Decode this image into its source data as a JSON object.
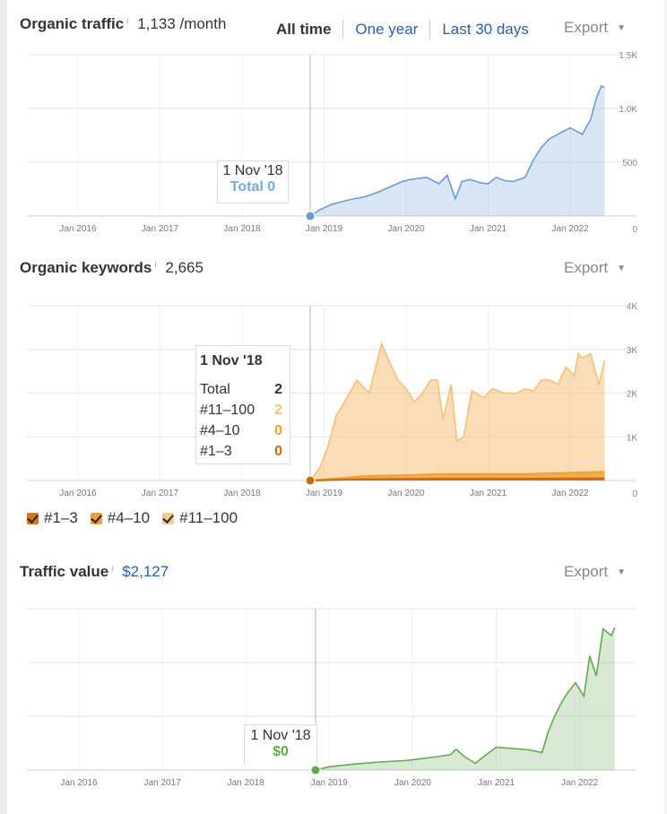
{
  "traffic": {
    "title": "Organic traffic",
    "info": "i",
    "value": "1,133 /month",
    "ranges": [
      "All time",
      "One year",
      "Last 30 days"
    ],
    "export_label": "Export",
    "tooltip": {
      "date": "1 Nov '18",
      "total_label": "Total",
      "total_value": "0"
    }
  },
  "keywords": {
    "title": "Organic keywords",
    "info": "i",
    "value": "2,665",
    "export_label": "Export",
    "tooltip": {
      "date": "1 Nov '18",
      "rows": [
        {
          "label": "Total",
          "value": "2",
          "color": "#333333"
        },
        {
          "label": "#11–100",
          "value": "2",
          "color": "#f5c07a"
        },
        {
          "label": "#4–10",
          "value": "0",
          "color": "#f0a035"
        },
        {
          "label": "#1–3",
          "value": "0",
          "color": "#c96a12"
        }
      ]
    },
    "legend": [
      {
        "label": "#1–3",
        "color": "#d2761f"
      },
      {
        "label": "#4–10",
        "color": "#f0a035"
      },
      {
        "label": "#11–100",
        "color": "#f7c98c"
      }
    ]
  },
  "value": {
    "title": "Traffic value",
    "info": "i",
    "value": "$2,127",
    "export_label": "Export",
    "tooltip": {
      "date": "1 Nov '18",
      "total_value": "$0"
    }
  },
  "chart_data": [
    {
      "type": "area",
      "title": "Organic traffic",
      "color": "#6b9bd4",
      "x_ticks": [
        "Jan 2016",
        "Jan 2017",
        "Jan 2018",
        "Jan 2019",
        "Jan 2020",
        "Jan 2021",
        "Jan 2022"
      ],
      "y_ticks": [
        "0",
        "500",
        "1.0K",
        "1.5K"
      ],
      "ylim": [
        0,
        1500
      ],
      "grid": true,
      "marker": {
        "x": 2018.83,
        "label": "1 Nov '18"
      },
      "series": [
        {
          "x": [
            2018.83,
            2018.95,
            2019.1,
            2019.3,
            2019.5,
            2019.65,
            2019.8,
            2019.95,
            2020.05,
            2020.25,
            2020.4,
            2020.5,
            2020.6,
            2020.68,
            2020.78,
            2020.9,
            2021.0,
            2021.1,
            2021.2,
            2021.3,
            2021.45,
            2021.55,
            2021.65,
            2021.75,
            2021.85,
            2021.95,
            2022.0,
            2022.1,
            2022.15,
            2022.25,
            2022.32,
            2022.38,
            2022.42
          ],
          "y": [
            0,
            60,
            110,
            150,
            180,
            220,
            270,
            320,
            340,
            360,
            300,
            380,
            160,
            320,
            340,
            310,
            300,
            360,
            330,
            320,
            360,
            520,
            640,
            720,
            760,
            800,
            820,
            780,
            760,
            900,
            1100,
            1210,
            1190
          ]
        }
      ]
    },
    {
      "type": "area",
      "title": "Organic keywords",
      "x_ticks": [
        "Jan 2016",
        "Jan 2017",
        "Jan 2018",
        "Jan 2019",
        "Jan 2020",
        "Jan 2021",
        "Jan 2022"
      ],
      "y_ticks": [
        "0",
        "1K",
        "2K",
        "3K",
        "4K"
      ],
      "ylim": [
        0,
        4000
      ],
      "grid": true,
      "marker": {
        "x": 2018.83,
        "label": "1 Nov '18"
      },
      "series": [
        {
          "name": "#11–100",
          "color": "#f5c07a",
          "x": [
            2018.83,
            2018.95,
            2019.05,
            2019.15,
            2019.25,
            2019.4,
            2019.55,
            2019.7,
            2019.8,
            2019.9,
            2020.0,
            2020.1,
            2020.2,
            2020.3,
            2020.38,
            2020.45,
            2020.55,
            2020.62,
            2020.7,
            2020.8,
            2020.95,
            2021.05,
            2021.2,
            2021.35,
            2021.45,
            2021.55,
            2021.65,
            2021.75,
            2021.85,
            2021.95,
            2022.05,
            2022.1,
            2022.15,
            2022.25,
            2022.35,
            2022.42
          ],
          "y": [
            0,
            300,
            800,
            1500,
            1800,
            2300,
            2000,
            3130,
            2700,
            2300,
            2100,
            1800,
            2000,
            2300,
            2300,
            1400,
            2200,
            900,
            1000,
            2050,
            1900,
            2100,
            2000,
            2000,
            2100,
            2050,
            2300,
            2300,
            2200,
            2600,
            2400,
            2900,
            2800,
            2900,
            2200,
            2750
          ]
        },
        {
          "name": "#4–10",
          "color": "#f0a035",
          "x": [
            2018.83,
            2019.5,
            2020.5,
            2021.5,
            2022.42
          ],
          "y": [
            0,
            100,
            150,
            150,
            200
          ]
        },
        {
          "name": "#1–3",
          "color": "#c96a12",
          "x": [
            2018.83,
            2019.5,
            2020.5,
            2021.5,
            2022.42
          ],
          "y": [
            0,
            30,
            40,
            40,
            50
          ]
        }
      ]
    },
    {
      "type": "area",
      "title": "Traffic value",
      "color": "#63a94f",
      "x_ticks": [
        "Jan 2016",
        "Jan 2017",
        "Jan 2018",
        "Jan 2019",
        "Jan 2020",
        "Jan 2021",
        "Jan 2022"
      ],
      "ylim": [
        0,
        2400
      ],
      "grid": true,
      "marker": {
        "x": 2018.83,
        "label": "1 Nov '18"
      },
      "series": [
        {
          "x": [
            2018.83,
            2019.0,
            2019.3,
            2019.6,
            2019.9,
            2020.1,
            2020.3,
            2020.45,
            2020.52,
            2020.62,
            2020.75,
            2020.85,
            2021.0,
            2021.2,
            2021.4,
            2021.55,
            2021.62,
            2021.7,
            2021.78,
            2021.85,
            2021.95,
            2022.05,
            2022.12,
            2022.2,
            2022.28,
            2022.38,
            2022.42
          ],
          "y": [
            0,
            50,
            90,
            120,
            140,
            170,
            200,
            230,
            310,
            200,
            100,
            200,
            340,
            320,
            300,
            260,
            560,
            800,
            1000,
            1140,
            1300,
            1100,
            1700,
            1400,
            2100,
            2000,
            2120
          ]
        }
      ]
    }
  ]
}
